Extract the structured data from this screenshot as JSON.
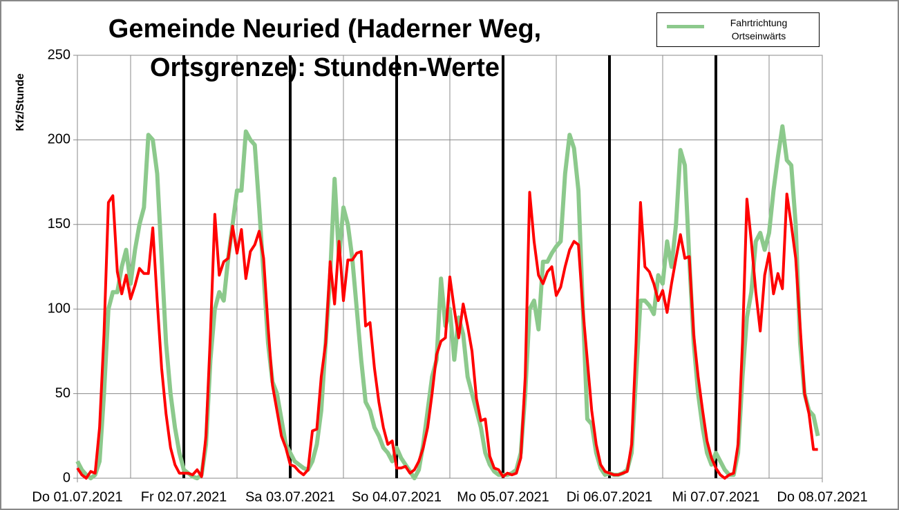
{
  "chart_data": {
    "type": "line",
    "title": [
      "Gemeinde Neuried (Haderner Weg,",
      "Ortsgrenze): Stunden-Werte"
    ],
    "y_label": "Kfz/Stunde",
    "xlim": [
      0,
      168
    ],
    "xticks": [
      {
        "value": 0,
        "label": "Do 01.07.2021"
      },
      {
        "value": 24,
        "label": "Fr 02.07.2021"
      },
      {
        "value": 48,
        "label": "Sa 03.07.2021"
      },
      {
        "value": 72,
        "label": "So 04.07.2021"
      },
      {
        "value": 96,
        "label": "Mo 05.07.2021"
      },
      {
        "value": 120,
        "label": "Di 06.07.2021"
      },
      {
        "value": 144,
        "label": "Mi 07.07.2021"
      },
      {
        "value": 168,
        "label": "Do 08.07.2021"
      }
    ],
    "ylim": [
      0,
      250
    ],
    "yticks": [
      0,
      50,
      100,
      150,
      200,
      250
    ],
    "grid": true,
    "legend": "top-right",
    "series": [
      {
        "name": "Fahrtrichtung Ortseinwärts",
        "color": "#8cc98c",
        "values": [
          10,
          5,
          2,
          0,
          2,
          10,
          50,
          100,
          110,
          110,
          125,
          135,
          115,
          135,
          150,
          160,
          203,
          200,
          180,
          130,
          80,
          50,
          30,
          15,
          5,
          3,
          1,
          0,
          2,
          20,
          70,
          100,
          110,
          105,
          130,
          150,
          170,
          170,
          205,
          200,
          197,
          160,
          120,
          80,
          57,
          50,
          35,
          20,
          15,
          10,
          8,
          6,
          5,
          10,
          20,
          40,
          80,
          120,
          177,
          130,
          160,
          150,
          130,
          100,
          70,
          45,
          40,
          30,
          25,
          18,
          15,
          10,
          18,
          12,
          8,
          4,
          0,
          5,
          20,
          40,
          60,
          70,
          118,
          90,
          100,
          70,
          95,
          85,
          60,
          50,
          40,
          30,
          15,
          8,
          4,
          2,
          2,
          2,
          3,
          5,
          15,
          50,
          100,
          105,
          88,
          128,
          128,
          133,
          137,
          140,
          180,
          203,
          195,
          170,
          100,
          35,
          32,
          15,
          6,
          2,
          3,
          2,
          2,
          3,
          5,
          15,
          60,
          105,
          105,
          102,
          97,
          120,
          115,
          140,
          125,
          150,
          194,
          185,
          130,
          80,
          50,
          30,
          15,
          8,
          15,
          10,
          5,
          2,
          2,
          15,
          60,
          95,
          110,
          140,
          145,
          135,
          145,
          170,
          190,
          208,
          188,
          185,
          150,
          80,
          50,
          40,
          37,
          25
        ]
      },
      {
        "color": "#ff0000",
        "values": [
          6,
          2,
          0,
          4,
          3,
          30,
          85,
          163,
          167,
          122,
          109,
          120,
          106,
          114,
          124,
          121,
          121,
          148,
          105,
          65,
          38,
          18,
          8,
          3,
          3,
          3,
          2,
          5,
          1,
          25,
          85,
          156,
          120,
          128,
          130,
          149,
          133,
          147,
          118,
          134,
          138,
          146,
          130,
          90,
          55,
          40,
          25,
          18,
          8,
          7,
          4,
          2,
          5,
          28,
          29,
          60,
          80,
          128,
          103,
          140,
          105,
          129,
          129,
          133,
          134,
          90,
          92,
          65,
          45,
          30,
          20,
          22,
          6,
          6,
          7,
          3,
          5,
          10,
          18,
          30,
          50,
          73,
          81,
          83,
          119,
          100,
          83,
          103,
          90,
          75,
          47,
          34,
          35,
          13,
          6,
          5,
          1,
          3,
          2,
          3,
          12,
          60,
          169,
          140,
          120,
          115,
          122,
          125,
          108,
          113,
          125,
          135,
          140,
          138,
          100,
          70,
          40,
          20,
          8,
          4,
          3,
          2,
          2,
          3,
          4,
          20,
          80,
          163,
          125,
          122,
          115,
          105,
          111,
          98,
          115,
          130,
          144,
          130,
          131,
          85,
          60,
          40,
          22,
          12,
          6,
          2,
          0,
          2,
          3,
          20,
          80,
          165,
          140,
          110,
          87,
          120,
          133,
          109,
          121,
          112,
          168,
          150,
          130,
          90,
          50,
          38,
          17,
          17
        ]
      }
    ]
  }
}
